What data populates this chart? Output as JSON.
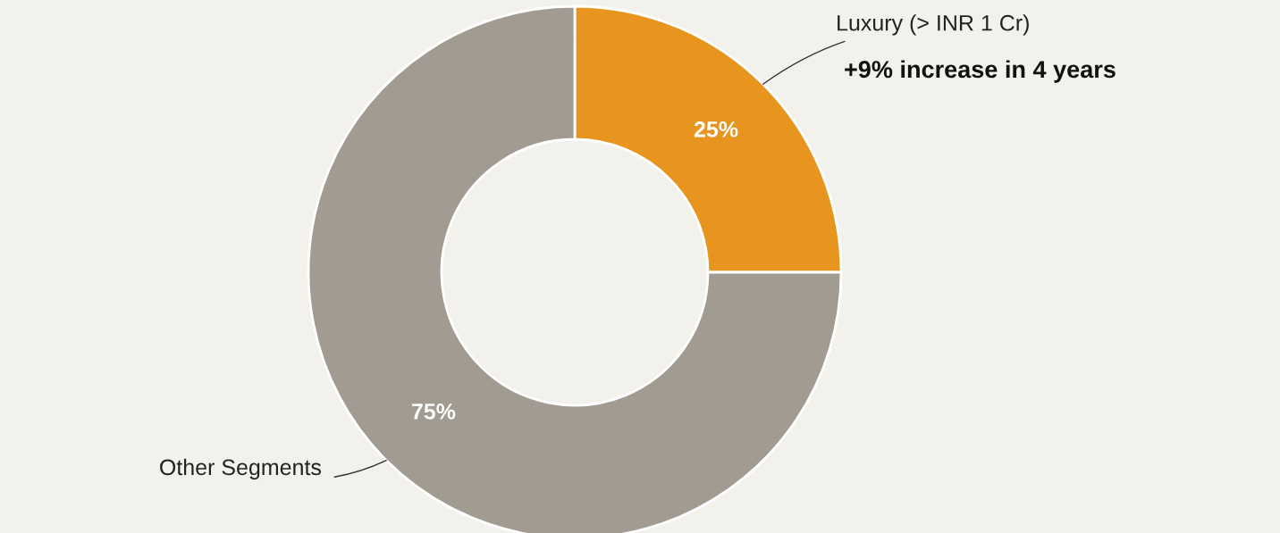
{
  "chart_data": {
    "type": "donut",
    "categories": [
      "Luxury (> INR 1 Cr)",
      "Other Segments"
    ],
    "values": [
      25,
      75
    ],
    "colors": [
      "#e8951f",
      "#a19b92"
    ],
    "value_labels": [
      "25%",
      "75%"
    ],
    "annotations": [
      "+9% increase in 4 years"
    ],
    "legend": false
  }
}
